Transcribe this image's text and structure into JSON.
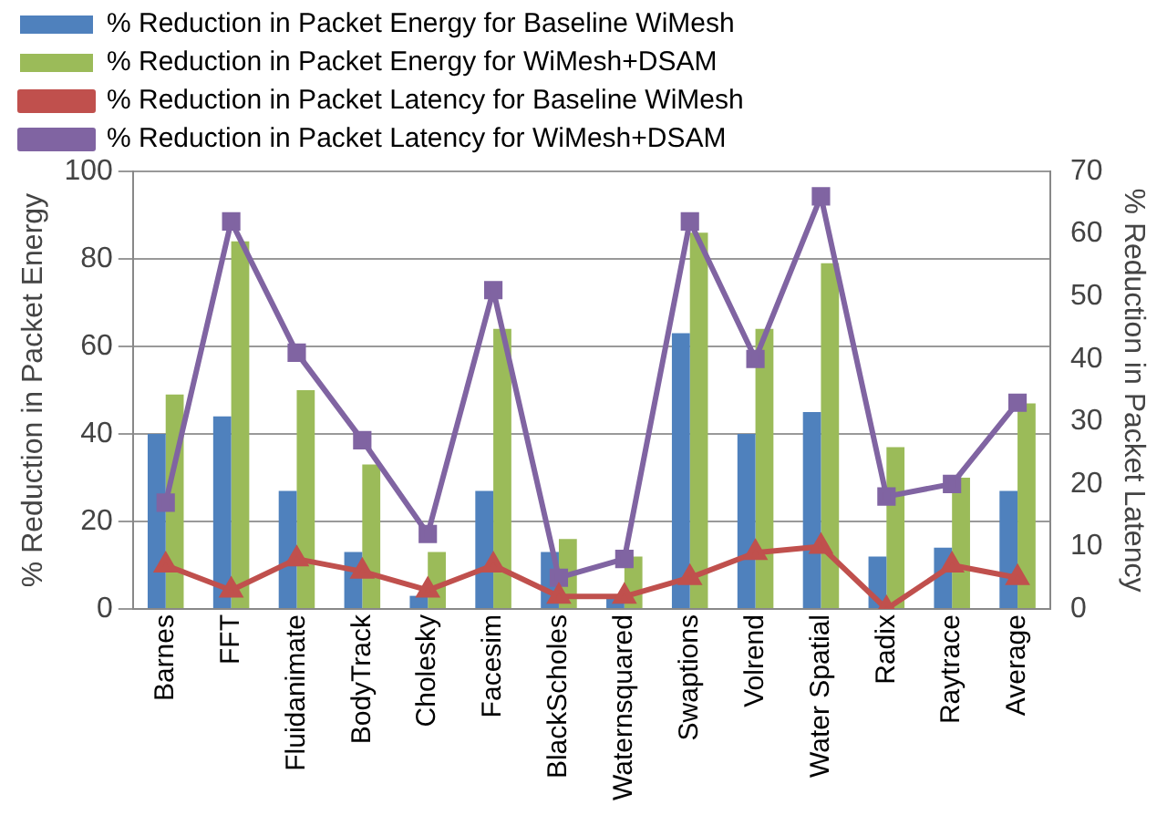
{
  "chart_data": {
    "type": "bar",
    "categories": [
      "Barnes",
      "FFT",
      "Fluidanimate",
      "BodyTrack",
      "Cholesky",
      "Facesim",
      "BlackScholes",
      "Waternsquared",
      "Swaptions",
      "Volrend",
      "Water Spatial",
      "Radix",
      "Raytrace",
      "Average"
    ],
    "ylabel": "% Reduction in Packet Energy",
    "y2label": "% Reduction in Packet Latency",
    "ylim": [
      0,
      100
    ],
    "yticks": [
      0,
      20,
      40,
      60,
      80,
      100
    ],
    "y2lim": [
      0,
      70
    ],
    "y2ticks": [
      0,
      10,
      20,
      30,
      40,
      50,
      60,
      70
    ],
    "grid": "y",
    "legend": "top",
    "series": [
      {
        "name": "% Reduction in Packet Energy for Baseline WiMesh",
        "color": "#4f81bd",
        "values": [
          40,
          44,
          27,
          13,
          3,
          27,
          13,
          3,
          63,
          40,
          45,
          12,
          14,
          27
        ]
      },
      {
        "name": "% Reduction in Packet Energy for WiMesh+DSAM",
        "color": "#9bbb59",
        "values": [
          49,
          84,
          50,
          33,
          13,
          64,
          16,
          12,
          86,
          64,
          79,
          37,
          30,
          47
        ]
      },
      {
        "name": "% Reduction in Packet Latency for Baseline WiMesh",
        "type": "line",
        "axis": "y2",
        "marker": "triangle",
        "color": "#c0504d",
        "values": [
          7,
          3,
          8,
          6,
          3,
          7,
          2,
          2,
          5,
          9,
          10,
          0,
          7,
          5
        ]
      },
      {
        "name": "% Reduction in Packet Latency for WiMesh+DSAM",
        "type": "line",
        "axis": "y2",
        "marker": "square",
        "color": "#8064a2",
        "values": [
          17,
          62,
          41,
          27,
          12,
          51,
          5,
          8,
          62,
          40,
          66,
          18,
          20,
          33
        ]
      }
    ]
  }
}
